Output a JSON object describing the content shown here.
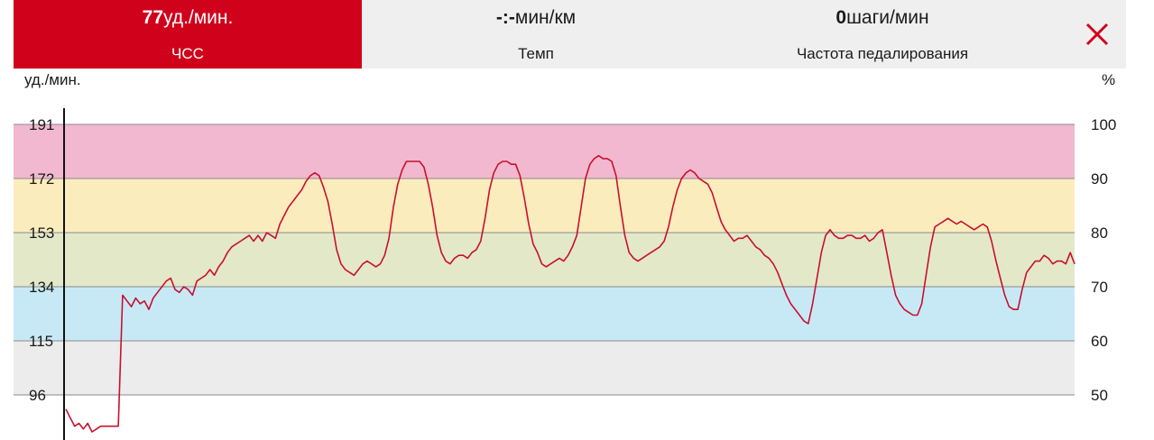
{
  "tabs": [
    {
      "value": "77",
      "unit": "уд./мин.",
      "label": "ЧСС",
      "active": true
    },
    {
      "value": "-:-",
      "unit": "мин/км",
      "label": "Темп",
      "active": false
    },
    {
      "value": "0",
      "unit": "шаги/мин",
      "label": "Частота педалирования",
      "active": false
    }
  ],
  "close_icon": "close-icon",
  "colors": {
    "accent": "#d0021b",
    "zone_max": "#f2b8cf",
    "zone_anaerobic": "#fbecbe",
    "zone_aerobic": "#e3e8c9",
    "zone_fatburn": "#c7e9f6",
    "zone_light": "#ececec",
    "line": "#c8102e"
  },
  "chart_data": {
    "type": "line",
    "title": "",
    "ylabel_left": "уд./мин.",
    "ylabel_right": "%",
    "left_ticks": [
      "191",
      "172",
      "153",
      "134",
      "115",
      "96"
    ],
    "right_ticks": [
      "100",
      "90",
      "80",
      "70",
      "60",
      "50"
    ],
    "ylim": [
      83,
      191
    ],
    "zones": [
      {
        "from": 172,
        "to": 191,
        "color": "#f2b8cf"
      },
      {
        "from": 153,
        "to": 172,
        "color": "#fbecbe"
      },
      {
        "from": 134,
        "to": 153,
        "color": "#e3e8c9"
      },
      {
        "from": 115,
        "to": 134,
        "color": "#c7e9f6"
      },
      {
        "from": 96,
        "to": 115,
        "color": "#ececec"
      }
    ],
    "grid": true,
    "series": [
      {
        "values": [
          91,
          88,
          85,
          86,
          84,
          86,
          83,
          84,
          85,
          85,
          85,
          85,
          85,
          131,
          129,
          127,
          130,
          128,
          129,
          126,
          130,
          132,
          134,
          136,
          137,
          133,
          132,
          134,
          133,
          131,
          136,
          137,
          138,
          140,
          138,
          141,
          143,
          146,
          148,
          149,
          150,
          151,
          152,
          150,
          152,
          150,
          153,
          152,
          151,
          156,
          159,
          162,
          164,
          166,
          168,
          171,
          173,
          174,
          173,
          169,
          164,
          156,
          147,
          142,
          140,
          139,
          138,
          140,
          142,
          143,
          142,
          141,
          142,
          145,
          151,
          162,
          170,
          175,
          178,
          178,
          178,
          178,
          176,
          170,
          162,
          152,
          146,
          143,
          142,
          144,
          145,
          145,
          144,
          146,
          147,
          150,
          158,
          168,
          174,
          177,
          178,
          178,
          177,
          177,
          173,
          165,
          156,
          149,
          146,
          142,
          141,
          142,
          143,
          144,
          143,
          145,
          148,
          152,
          162,
          172,
          177,
          179,
          180,
          179,
          179,
          178,
          173,
          162,
          152,
          146,
          144,
          143,
          144,
          145,
          146,
          147,
          148,
          150,
          155,
          162,
          168,
          172,
          174,
          175,
          174,
          172,
          171,
          170,
          167,
          162,
          157,
          154,
          152,
          150,
          151,
          151,
          152,
          150,
          148,
          147,
          145,
          144,
          142,
          139,
          135,
          131,
          128,
          126,
          124,
          122,
          121,
          128,
          137,
          146,
          152,
          154,
          152,
          151,
          151,
          152,
          152,
          151,
          151,
          152,
          150,
          151,
          153,
          154,
          146,
          138,
          131,
          128,
          126,
          125,
          124,
          124,
          128,
          138,
          148,
          155,
          156,
          157,
          158,
          157,
          156,
          157,
          156,
          155,
          154,
          155,
          156,
          155,
          150,
          143,
          137,
          131,
          127,
          126,
          126,
          133,
          139,
          141,
          143,
          143,
          145,
          144,
          142,
          143,
          143,
          142,
          146,
          142
        ]
      }
    ],
    "current_value": 77
  }
}
